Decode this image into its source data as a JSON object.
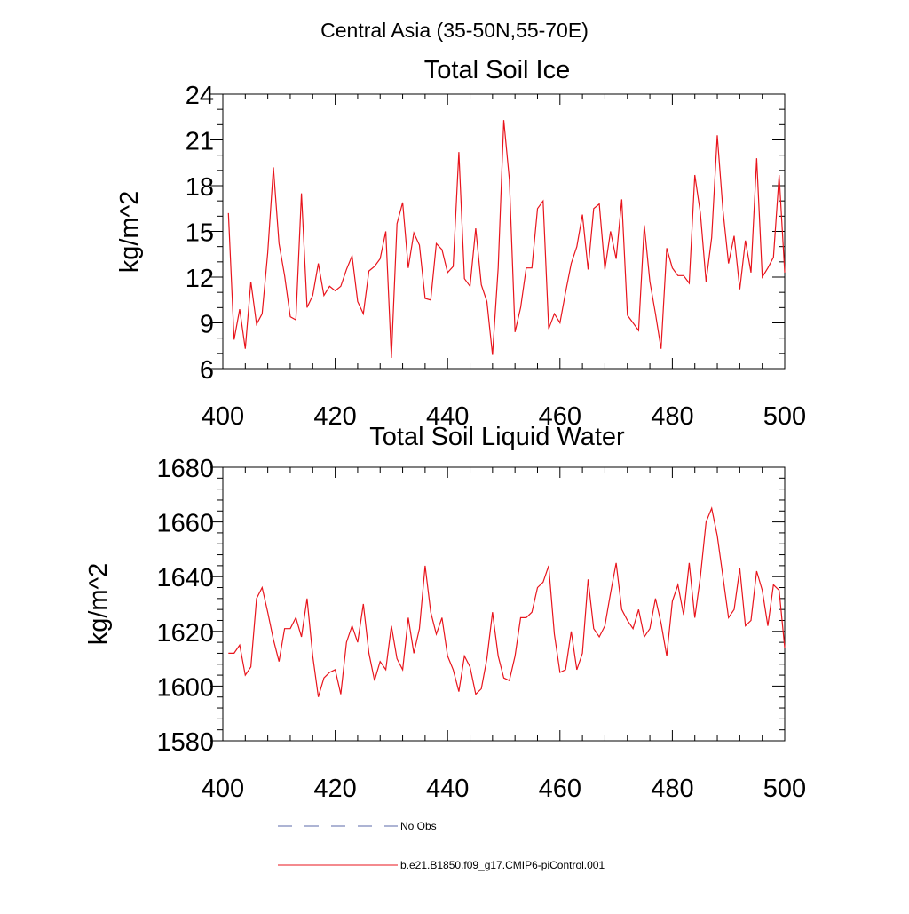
{
  "page_title": "Central Asia (35-50N,55-70E)",
  "chart_data": [
    {
      "type": "line",
      "title": "Total Soil Ice",
      "ylabel": "kg/m^2",
      "xlabel": "",
      "xlim": [
        400,
        500
      ],
      "ylim": [
        6,
        24
      ],
      "xticks": [
        "400",
        "420",
        "440",
        "460",
        "480",
        "500"
      ],
      "yticks": [
        "6",
        "9",
        "12",
        "15",
        "18",
        "21",
        "24"
      ],
      "series": [
        {
          "color": "#e8141c",
          "x": [
            401,
            402,
            403,
            404,
            405,
            406,
            407,
            408,
            409,
            410,
            411,
            412,
            413,
            414,
            415,
            416,
            417,
            418,
            419,
            420,
            421,
            422,
            423,
            424,
            425,
            426,
            427,
            428,
            429,
            430,
            431,
            432,
            433,
            434,
            435,
            436,
            437,
            438,
            439,
            440,
            441,
            442,
            443,
            444,
            445,
            446,
            447,
            448,
            449,
            450,
            451,
            452,
            453,
            454,
            455,
            456,
            457,
            458,
            459,
            460,
            461,
            462,
            463,
            464,
            465,
            466,
            467,
            468,
            469,
            470,
            471,
            472,
            473,
            474,
            475,
            476,
            477,
            478,
            479,
            480,
            481,
            482,
            483,
            484,
            485,
            486,
            487,
            488,
            489,
            490,
            491,
            492,
            493,
            494,
            495,
            496,
            497,
            498,
            499,
            500
          ],
          "y": [
            16.2,
            7.9,
            9.9,
            7.3,
            11.7,
            8.9,
            9.6,
            13.6,
            19.2,
            14.2,
            12.1,
            9.4,
            9.2,
            17.5,
            10.0,
            10.8,
            12.9,
            10.8,
            11.4,
            11.1,
            11.4,
            12.5,
            13.4,
            10.4,
            9.6,
            12.4,
            12.7,
            13.2,
            15.0,
            6.7,
            15.5,
            16.9,
            12.6,
            14.9,
            14.1,
            10.6,
            10.5,
            14.2,
            13.8,
            12.3,
            12.7,
            20.2,
            11.9,
            11.4,
            15.2,
            11.5,
            10.4,
            6.9,
            12.6,
            22.3,
            18.4,
            8.4,
            10.0,
            12.6,
            12.6,
            16.5,
            17.0,
            8.6,
            9.6,
            9.0,
            11.0,
            12.9,
            14.0,
            16.1,
            12.5,
            16.5,
            16.8,
            12.5,
            15.0,
            13.2,
            17.1,
            9.5,
            9.0,
            8.5,
            15.4,
            11.7,
            9.6,
            7.3,
            13.9,
            12.6,
            12.1,
            12.1,
            11.6,
            18.7,
            16.2,
            11.7,
            14.6,
            21.3,
            16.4,
            12.9,
            14.7,
            11.2,
            14.4,
            12.3,
            19.8,
            12.0,
            12.6,
            13.3,
            18.7,
            12.3
          ]
        }
      ]
    },
    {
      "type": "line",
      "title": "Total Soil Liquid Water",
      "ylabel": "kg/m^2",
      "xlabel": "",
      "xlim": [
        400,
        500
      ],
      "ylim": [
        1580,
        1680
      ],
      "xticks": [
        "400",
        "420",
        "440",
        "460",
        "480",
        "500"
      ],
      "yticks": [
        "1580",
        "1600",
        "1620",
        "1640",
        "1660",
        "1680"
      ],
      "series": [
        {
          "color": "#e8141c",
          "x": [
            401,
            402,
            403,
            404,
            405,
            406,
            407,
            408,
            409,
            410,
            411,
            412,
            413,
            414,
            415,
            416,
            417,
            418,
            419,
            420,
            421,
            422,
            423,
            424,
            425,
            426,
            427,
            428,
            429,
            430,
            431,
            432,
            433,
            434,
            435,
            436,
            437,
            438,
            439,
            440,
            441,
            442,
            443,
            444,
            445,
            446,
            447,
            448,
            449,
            450,
            451,
            452,
            453,
            454,
            455,
            456,
            457,
            458,
            459,
            460,
            461,
            462,
            463,
            464,
            465,
            466,
            467,
            468,
            469,
            470,
            471,
            472,
            473,
            474,
            475,
            476,
            477,
            478,
            479,
            480,
            481,
            482,
            483,
            484,
            485,
            486,
            487,
            488,
            489,
            490,
            491,
            492,
            493,
            494,
            495,
            496,
            497,
            498,
            499,
            500
          ],
          "y": [
            1612,
            1612,
            1615,
            1604,
            1607,
            1632,
            1636,
            1627,
            1617,
            1609,
            1621,
            1621,
            1625,
            1618,
            1632,
            1611,
            1596,
            1603,
            1605,
            1606,
            1597,
            1616,
            1622,
            1616,
            1630,
            1612,
            1602,
            1609,
            1606,
            1622,
            1610,
            1606,
            1625,
            1612,
            1621,
            1644,
            1627,
            1619,
            1625,
            1611,
            1606,
            1598,
            1611,
            1607,
            1597,
            1599,
            1610,
            1627,
            1611,
            1603,
            1602,
            1611,
            1625,
            1625,
            1627,
            1636,
            1638,
            1644,
            1619,
            1605,
            1606,
            1620,
            1606,
            1612,
            1639,
            1621,
            1618,
            1622,
            1634,
            1645,
            1628,
            1624,
            1621,
            1628,
            1618,
            1621,
            1632,
            1623,
            1611,
            1631,
            1637,
            1626,
            1645,
            1625,
            1640,
            1660,
            1665,
            1655,
            1640,
            1625,
            1628,
            1643,
            1622,
            1624,
            1642,
            1635,
            1622,
            1637,
            1635,
            1614
          ]
        }
      ]
    }
  ],
  "legend": {
    "placement": "bottom",
    "items": [
      {
        "label": "No Obs",
        "color": "#5b6aa8",
        "style": "dashed"
      },
      {
        "label": "b.e21.B1850.f09_g17.CMIP6-piControl.001",
        "color": "#e8141c",
        "style": "solid"
      }
    ]
  }
}
